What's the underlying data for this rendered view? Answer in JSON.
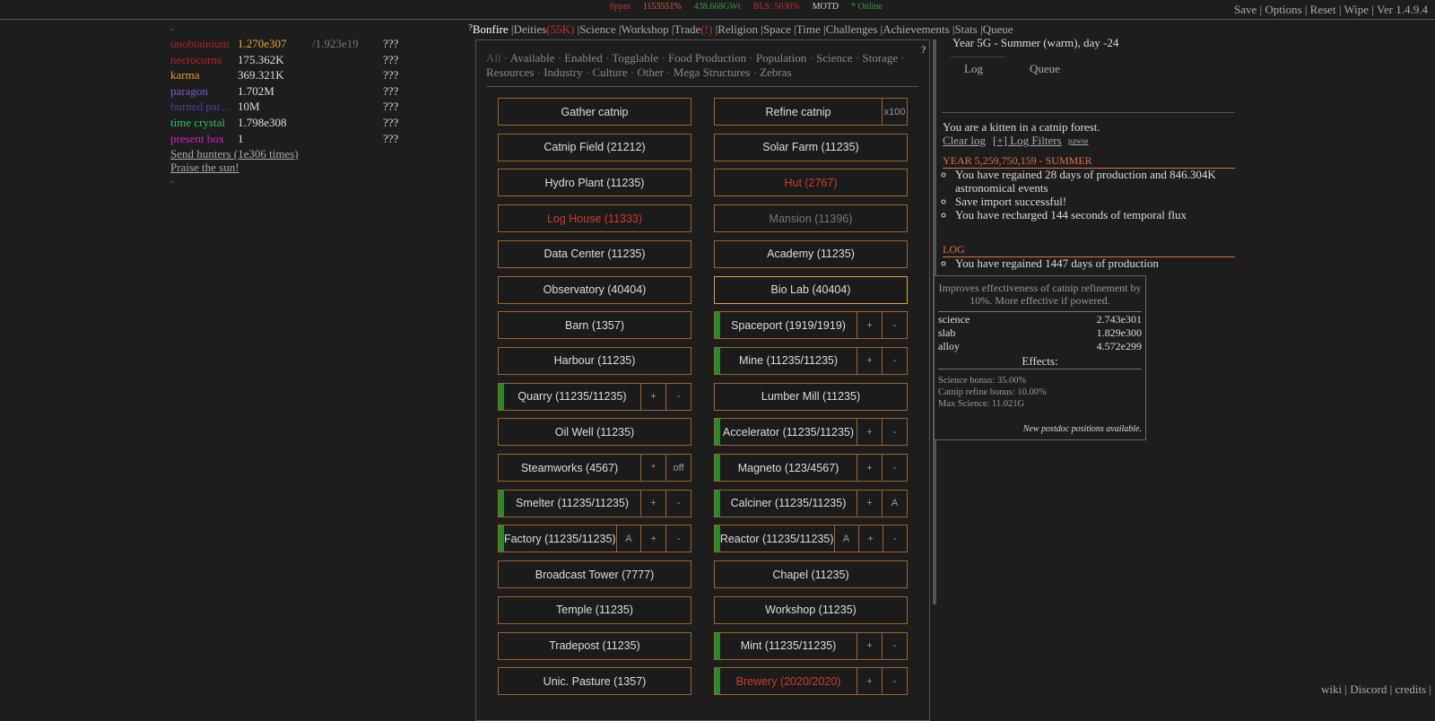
{
  "top_bar": {
    "stats": [
      {
        "text": "0ppm",
        "color": "#b83a2e"
      },
      {
        "text": "1153551%",
        "color": "#d9603f"
      },
      {
        "text": "438.668GWt",
        "color": "#3c9a3c"
      },
      {
        "text": "BLS: 5030%",
        "color": "#c23030"
      },
      {
        "text": "MOTD",
        "color": "#cccccc"
      },
      {
        "text": "* Online",
        "color": "#3c9a3c"
      }
    ],
    "menu": [
      "Save",
      "Options",
      "Reset",
      "Wipe",
      "Ver 1.4.9.4"
    ],
    "separator": "|"
  },
  "resources": [
    {
      "name": "unobtainium",
      "amount": "1.270e307",
      "max": "/1.923e19",
      "rate": "???",
      "color": "#b02020",
      "amount_color": "#f0a030"
    },
    {
      "name": "necrocorns",
      "amount": "175.362K",
      "rate": "???",
      "color": "#c02020"
    },
    {
      "name": "karma",
      "amount": "369.321K",
      "rate": "???",
      "color": "#e8a020"
    },
    {
      "name": "paragon",
      "amount": "1.702M",
      "rate": "???",
      "color": "#7a5ad8"
    },
    {
      "name": "burned par…",
      "amount": "10M",
      "rate": "???",
      "color": "#5a3aa0"
    },
    {
      "name": "time crystal",
      "amount": "1.798e308",
      "rate": "???",
      "color": "#30c060"
    },
    {
      "name": "present box",
      "amount": "1",
      "rate": "???",
      "color": "#d020c0"
    }
  ],
  "resource_actions": [
    "Send hunters (1e306 times)",
    "Praise the sun!"
  ],
  "tabs": {
    "help": "?",
    "separator": "|",
    "items": [
      {
        "label": "Bonfire",
        "active": true
      },
      {
        "label": "Deities",
        "extra": "(55K)"
      },
      {
        "label": "Science"
      },
      {
        "label": "Workshop"
      },
      {
        "label": "Trade",
        "extra": "(!)"
      },
      {
        "label": "Religion"
      },
      {
        "label": "Space"
      },
      {
        "label": "Time"
      },
      {
        "label": "Challenges"
      },
      {
        "label": "Achievements"
      },
      {
        "label": "Stats"
      },
      {
        "label": "Queue"
      }
    ]
  },
  "panel_help": "?",
  "filters": {
    "separator": "·",
    "items": [
      "All",
      "Available",
      "Enabled",
      "Togglable",
      "Food Production",
      "Population",
      "Science",
      "Storage",
      "Resources",
      "Industry",
      "Culture",
      "Other",
      "Mega Structures",
      "Zebras"
    ]
  },
  "buildings": {
    "left": [
      {
        "label": "Gather catnip"
      },
      {
        "label": "Catnip Field (21212)"
      },
      {
        "label": "Hydro Plant (11235)"
      },
      {
        "label": "Log House (11333)",
        "color": "#d03a30"
      },
      {
        "label": "Data Center (11235)"
      },
      {
        "label": "Observatory (40404)"
      },
      {
        "label": "Barn (1357)"
      },
      {
        "label": "Harbour (11235)"
      },
      {
        "label": "Quarry (11235/11235)",
        "on": true,
        "controls": [
          "+",
          "-"
        ]
      },
      {
        "label": "Oil Well (11235)"
      },
      {
        "label": "Steamworks (4567)",
        "controls": [
          "*",
          "off"
        ]
      },
      {
        "label": "Smelter (11235/11235)",
        "on": true,
        "controls": [
          "+",
          "-"
        ]
      },
      {
        "label": "Factory (11235/11235)",
        "on": true,
        "controls": [
          "A",
          "+",
          "-"
        ]
      },
      {
        "label": "Broadcast Tower (7777)"
      },
      {
        "label": "Temple (11235)"
      },
      {
        "label": "Tradepost (11235)"
      },
      {
        "label": "Unic. Pasture (1357)"
      }
    ],
    "right": [
      {
        "label": "Refine catnip",
        "controls": [
          "x100"
        ]
      },
      {
        "label": "Solar Farm (11235)"
      },
      {
        "label": "Hut (2767)",
        "color": "#d03a30"
      },
      {
        "label": "Mansion (11396)",
        "color": "#777777"
      },
      {
        "label": "Academy (11235)"
      },
      {
        "label": "Bio Lab (40404)",
        "border": "#e0a040"
      },
      {
        "label": "Spaceport (1919/1919)",
        "on": true,
        "controls": [
          "+",
          "-"
        ]
      },
      {
        "label": "Mine (11235/11235)",
        "on": true,
        "controls": [
          "+",
          "-"
        ]
      },
      {
        "label": "Lumber Mill (11235)"
      },
      {
        "label": "Accelerator (11235/11235)",
        "on": true,
        "controls": [
          "+",
          "-"
        ]
      },
      {
        "label": "Magneto (123/4567)",
        "on": true,
        "controls": [
          "+",
          "-"
        ]
      },
      {
        "label": "Calciner (11235/11235)",
        "on": true,
        "controls": [
          "+",
          "A"
        ]
      },
      {
        "label": "Reactor (11235/11235)",
        "on": true,
        "controls": [
          "A",
          "+",
          "-"
        ]
      },
      {
        "label": "Chapel (11235)"
      },
      {
        "label": "Workshop (11235)"
      },
      {
        "label": "Mint (11235/11235)",
        "on": true,
        "controls": [
          "+",
          "-"
        ]
      },
      {
        "label": "Brewery (2020/2020)",
        "on": true,
        "color": "#d03a30",
        "controls": [
          "+",
          "-"
        ]
      }
    ]
  },
  "log_panel": {
    "date": "Year 5G - Summer (warm), day -24",
    "tabs": [
      "Log",
      "Queue"
    ],
    "intro": "You are a kitten in a catnip forest.",
    "clear": "Clear log",
    "filters": "[+] Log Filters",
    "pause": "pawse",
    "sections": [
      {
        "heading": "YEAR 5,259,750,159 - SUMMER",
        "entries": [
          "You have regained 28 days of production and 846.304K astronomical events",
          "Save import successful!",
          "You have recharged 144 seconds of temporal flux"
        ]
      },
      {
        "heading": "LOG",
        "entries": [
          "You have regained 1447 days of production"
        ]
      }
    ]
  },
  "tooltip": {
    "description": "Improves effectiveness of catnip refinement by 10%. More effective if powered.",
    "prices": [
      {
        "name": "science",
        "value": "2.743e301"
      },
      {
        "name": "slab",
        "value": "1.829e300"
      },
      {
        "name": "alloy",
        "value": "4.572e299"
      }
    ],
    "effects_title": "Effects:",
    "effects": [
      "Science bonus: 35.00%",
      "Catnip refine bonus: 10.00%",
      "Max Science: 11.021G"
    ],
    "flavor": "New postdoc positions available."
  },
  "footer": {
    "links": [
      "wiki",
      "Discord",
      "credits"
    ],
    "separator": "|"
  }
}
